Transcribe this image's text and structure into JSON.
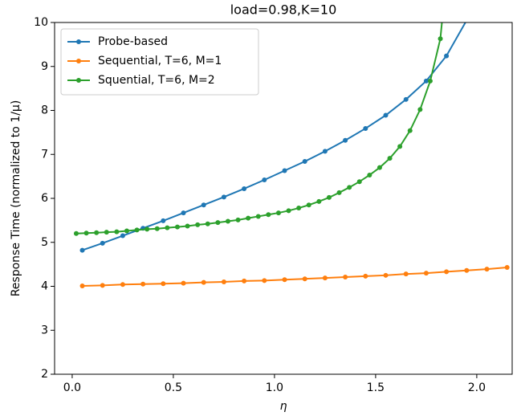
{
  "chart_data": {
    "type": "line",
    "title": "load=0.98,K=10",
    "x_label": "η",
    "y_label": "Response Time (normalized to 1/μ)",
    "xlim": [
      -0.087,
      2.175
    ],
    "ylim": [
      2,
      10
    ],
    "xticks": [
      {
        "value": 0,
        "label": "0.0"
      },
      0.5,
      {
        "value": 1,
        "label": "1.0"
      },
      1.5,
      {
        "value": 2,
        "label": "2.0"
      }
    ],
    "yticks": [
      2,
      3,
      4,
      5,
      6,
      7,
      8,
      9,
      10
    ],
    "legend": "upper left",
    "series": [
      {
        "name": "Probe-based",
        "color": "#1f77b4",
        "x": [
          0.05,
          0.15,
          0.25,
          0.35,
          0.45,
          0.55,
          0.65,
          0.75,
          0.85,
          0.95,
          1.05,
          1.15,
          1.25,
          1.35,
          1.45,
          1.55,
          1.65,
          1.75,
          1.85,
          1.95
        ],
        "values": [
          4.82,
          4.98,
          5.15,
          5.32,
          5.49,
          5.67,
          5.85,
          6.03,
          6.22,
          6.42,
          6.63,
          6.84,
          7.07,
          7.32,
          7.59,
          7.89,
          8.25,
          8.67,
          9.24,
          10.05
        ]
      },
      {
        "name": "Sequential, T=6, M=1",
        "color": "#ff7f0e",
        "x": [
          0.05,
          0.15,
          0.25,
          0.35,
          0.45,
          0.55,
          0.65,
          0.75,
          0.85,
          0.95,
          1.05,
          1.15,
          1.25,
          1.35,
          1.45,
          1.55,
          1.65,
          1.75,
          1.85,
          1.95,
          2.05,
          2.15
        ],
        "values": [
          4.01,
          4.02,
          4.04,
          4.05,
          4.06,
          4.07,
          4.09,
          4.1,
          4.12,
          4.13,
          4.15,
          4.17,
          4.19,
          4.21,
          4.23,
          4.25,
          4.28,
          4.3,
          4.33,
          4.36,
          4.39,
          4.43
        ]
      },
      {
        "name": "Squential, T=6, M=2",
        "color": "#2ca02c",
        "x": [
          0.02,
          0.07,
          0.12,
          0.17,
          0.22,
          0.27,
          0.32,
          0.37,
          0.42,
          0.47,
          0.52,
          0.57,
          0.62,
          0.67,
          0.72,
          0.77,
          0.82,
          0.87,
          0.92,
          0.97,
          1.02,
          1.07,
          1.12,
          1.17,
          1.22,
          1.27,
          1.32,
          1.37,
          1.42,
          1.47,
          1.52,
          1.57,
          1.62,
          1.67,
          1.72,
          1.77,
          1.82,
          1.87
        ],
        "values": [
          5.2,
          5.21,
          5.22,
          5.23,
          5.24,
          5.26,
          5.28,
          5.3,
          5.31,
          5.33,
          5.35,
          5.37,
          5.4,
          5.42,
          5.45,
          5.48,
          5.51,
          5.55,
          5.59,
          5.63,
          5.67,
          5.72,
          5.78,
          5.85,
          5.93,
          6.02,
          6.13,
          6.25,
          6.38,
          6.53,
          6.7,
          6.91,
          7.18,
          7.54,
          8.02,
          8.67,
          9.63,
          12
        ]
      }
    ]
  }
}
